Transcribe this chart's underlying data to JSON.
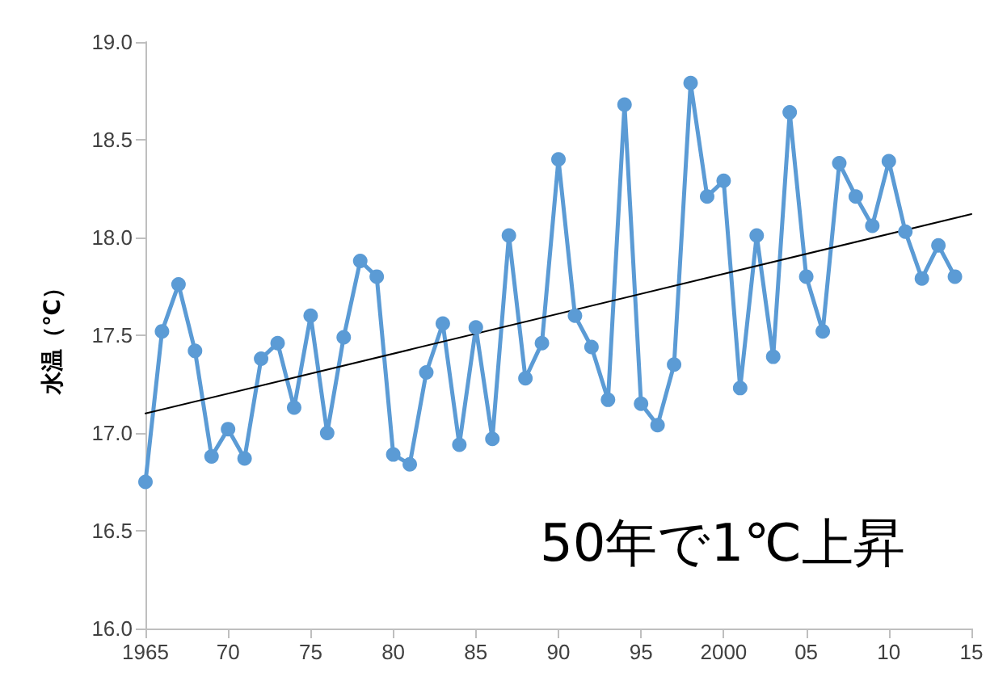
{
  "chart_data": {
    "type": "line",
    "ylabel": "水温（℃）",
    "annotations": [
      "50年で1℃上昇"
    ],
    "x": [
      1965,
      1966,
      1967,
      1968,
      1969,
      1970,
      1971,
      1972,
      1973,
      1974,
      1975,
      1976,
      1977,
      1978,
      1979,
      1980,
      1981,
      1982,
      1983,
      1984,
      1985,
      1986,
      1987,
      1988,
      1989,
      1990,
      1991,
      1992,
      1993,
      1994,
      1995,
      1996,
      1997,
      1998,
      1999,
      2000,
      2001,
      2002,
      2003,
      2004,
      2005,
      2006,
      2007,
      2008,
      2009,
      2010,
      2011,
      2012,
      2013,
      2014
    ],
    "series": [
      {
        "color": "#5b9bd5",
        "marker": "circle",
        "values": [
          16.75,
          17.52,
          17.76,
          17.42,
          16.88,
          17.02,
          16.87,
          17.38,
          17.46,
          17.13,
          17.6,
          17.0,
          17.49,
          17.88,
          17.8,
          16.89,
          16.84,
          17.31,
          17.56,
          16.94,
          17.54,
          16.97,
          18.01,
          17.28,
          17.46,
          18.4,
          17.6,
          17.44,
          17.17,
          18.68,
          17.15,
          17.04,
          17.35,
          18.79,
          18.21,
          18.29,
          17.23,
          18.01,
          17.39,
          18.64,
          17.8,
          17.52,
          18.38,
          18.21,
          18.06,
          18.39,
          18.03,
          17.79,
          17.96,
          17.8
        ]
      },
      {
        "color": "#000000",
        "marker": "none",
        "x": [
          1965,
          2015
        ],
        "values": [
          17.1,
          18.12
        ]
      }
    ],
    "xlim": [
      1965,
      2015
    ],
    "xticks": [
      {
        "value": 1965,
        "label": "1965"
      },
      {
        "value": 1970,
        "label": "70"
      },
      {
        "value": 1975,
        "label": "75"
      },
      {
        "value": 1980,
        "label": "80"
      },
      {
        "value": 1985,
        "label": "85"
      },
      {
        "value": 1990,
        "label": "90"
      },
      {
        "value": 1995,
        "label": "95"
      },
      {
        "value": 2000,
        "label": "2000"
      },
      {
        "value": 2005,
        "label": "05"
      },
      {
        "value": 2010,
        "label": "10"
      },
      {
        "value": 2015,
        "label": "15"
      }
    ],
    "ylim": [
      16,
      19
    ],
    "yticks": [
      {
        "value": 16,
        "label": "16.0"
      },
      {
        "value": 16.5,
        "label": "16.5"
      },
      {
        "value": 17,
        "label": "17.0"
      },
      {
        "value": 17.5,
        "label": "17.5"
      },
      {
        "value": 18,
        "label": "18.0"
      },
      {
        "value": 18.5,
        "label": "18.5"
      },
      {
        "value": 19,
        "label": "19.0"
      }
    ],
    "grid": false,
    "line_style": "solid"
  }
}
